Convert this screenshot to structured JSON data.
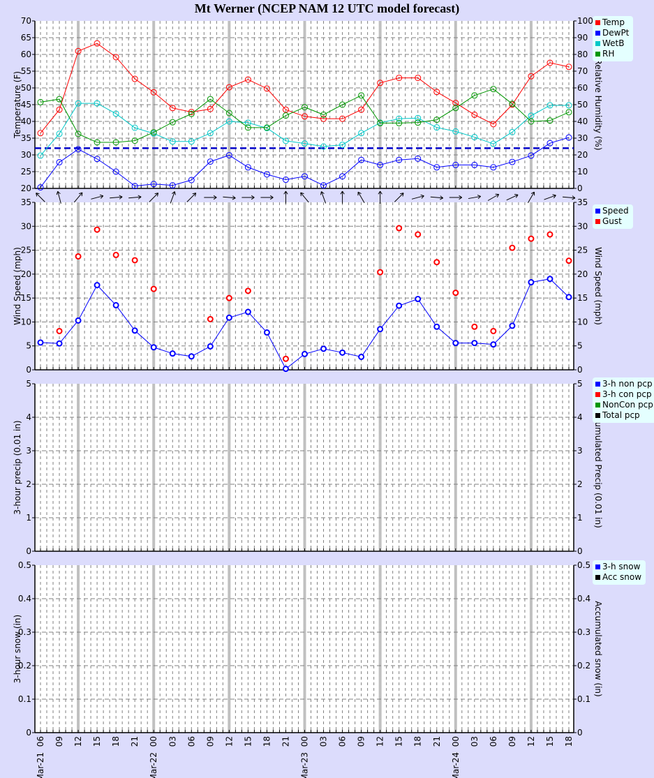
{
  "title": "Mt Werner (NCEP NAM 12 UTC model forecast)",
  "x_axis": {
    "tick_labels": [
      "06",
      "09",
      "12",
      "15",
      "18",
      "21",
      "00",
      "03",
      "06",
      "09",
      "12",
      "15",
      "18",
      "21",
      "00",
      "03",
      "06",
      "09",
      "12",
      "15",
      "18",
      "21",
      "00",
      "03",
      "06",
      "09",
      "12",
      "15",
      "18"
    ],
    "date_labels": [
      {
        "index": 0,
        "label": "Mar-21"
      },
      {
        "index": 6,
        "label": "Mar-22"
      },
      {
        "index": 14,
        "label": "Mar-23"
      },
      {
        "index": 22,
        "label": "Mar-24"
      }
    ]
  },
  "panels": {
    "temp": {
      "ylabel_left": "Temperature (F)",
      "ylabel_right": "Relative Humidity (%)",
      "left_ticks": [
        "70",
        "65",
        "60",
        "55",
        "50",
        "45",
        "40",
        "35",
        "30",
        "25",
        "20"
      ],
      "right_ticks": [
        "100",
        "90",
        "80",
        "70",
        "60",
        "50",
        "40",
        "30",
        "20",
        "10",
        "0"
      ],
      "legend": [
        {
          "label": "Temp",
          "color": "#ff0000"
        },
        {
          "label": "DewPt",
          "color": "#0000ff"
        },
        {
          "label": "WetB",
          "color": "#00c8c8"
        },
        {
          "label": "RH",
          "color": "#009600"
        }
      ]
    },
    "wind": {
      "ylabel_left": "Wind Speed (mph)",
      "ylabel_right": "Wind Speed (mph)",
      "left_ticks": [
        "35",
        "30",
        "25",
        "20",
        "15",
        "10",
        "5",
        "0"
      ],
      "right_ticks": [
        "35",
        "30",
        "25",
        "20",
        "15",
        "10",
        "5",
        "0"
      ],
      "legend": [
        {
          "label": "Speed",
          "color": "#0000ff"
        },
        {
          "label": "Gust",
          "color": "#ff0000"
        }
      ]
    },
    "precip": {
      "ylabel_left": "3-hour precip (0.01 in)",
      "ylabel_right": "Accumulated Precip (0.01 in)",
      "left_ticks": [
        "5",
        "4",
        "3",
        "2",
        "1",
        "0"
      ],
      "right_ticks": [
        "5",
        "4",
        "3",
        "2",
        "1",
        "0"
      ],
      "legend": [
        {
          "label": "3-h non pcp",
          "color": "#0000ff"
        },
        {
          "label": "3-h con pcp",
          "color": "#ff0000"
        },
        {
          "label": "NonCon pcp",
          "color": "#009600"
        },
        {
          "label": "Total pcp",
          "color": "#000000"
        }
      ]
    },
    "snow": {
      "ylabel_left": "3-hour snow (in)",
      "ylabel_right": "Accumulated snow (in)",
      "left_ticks": [
        "0.5",
        "0.4",
        "0.3",
        "0.2",
        "0.1",
        "0"
      ],
      "right_ticks": [
        "0.5",
        "0.4",
        "0.3",
        "0.2",
        "0.1",
        "0"
      ],
      "legend": [
        {
          "label": "3-h snow",
          "color": "#0000ff"
        },
        {
          "label": "Acc snow",
          "color": "#000000"
        }
      ]
    }
  },
  "chart_data": [
    {
      "type": "line",
      "title": "Mt Werner (NCEP NAM 12 UTC model forecast)",
      "panel": "temperature / humidity",
      "x": [
        "Mar-21 06",
        "09",
        "12",
        "15",
        "18",
        "21",
        "Mar-22 00",
        "03",
        "06",
        "09",
        "12",
        "15",
        "18",
        "21",
        "Mar-23 00",
        "03",
        "06",
        "09",
        "12",
        "15",
        "18",
        "21",
        "Mar-24 00",
        "03",
        "06",
        "09",
        "12",
        "15",
        "18"
      ],
      "xlabel": "",
      "ylabel": "Temperature (F)",
      "ylim": [
        20,
        70
      ],
      "y2label": "Relative Humidity (%)",
      "y2lim": [
        0,
        100
      ],
      "reference_line": {
        "value": 32,
        "style": "dashed",
        "color": "#0000c8"
      },
      "grid": true,
      "legend_position": "right-top",
      "series": [
        {
          "name": "Temp",
          "axis": "left",
          "color": "#ff0000",
          "values": [
            36.5,
            43.5,
            61,
            63.3,
            59.2,
            52.7,
            48.7,
            44,
            42.8,
            43.7,
            50.2,
            52.5,
            49.8,
            43.5,
            41.5,
            40.8,
            40.8,
            43.5,
            51.5,
            53,
            53,
            48.8,
            45.5,
            42,
            39.2,
            45,
            53.5,
            57.5,
            56.3
          ]
        },
        {
          "name": "DewPt",
          "axis": "left",
          "color": "#0000ff",
          "values": [
            20.3,
            27.8,
            31.7,
            28.8,
            25,
            20.7,
            21.3,
            20.9,
            22.5,
            28,
            29.9,
            26.3,
            24.2,
            22.6,
            23.6,
            20.9,
            23.6,
            28.5,
            27,
            28.5,
            28.9,
            26.3,
            27,
            27,
            26.3,
            27.9,
            29.8,
            33.5,
            35.2
          ]
        },
        {
          "name": "WetB",
          "axis": "left",
          "color": "#00c8c8",
          "values": [
            29.8,
            36.3,
            45.4,
            45.4,
            42.3,
            38.1,
            36.4,
            34,
            34,
            36.5,
            40,
            39.6,
            38,
            34.2,
            33.4,
            32.5,
            33,
            36.5,
            39.6,
            40.8,
            41,
            38.2,
            37,
            35.3,
            33.3,
            36.8,
            41.7,
            44.8,
            44.8
          ]
        },
        {
          "name": "RH",
          "axis": "right",
          "color": "#009600",
          "values": [
            51.5,
            53.3,
            32.5,
            27.5,
            27.5,
            28.5,
            33.5,
            39.5,
            44.5,
            53.3,
            45,
            36.3,
            36.3,
            43.5,
            48.5,
            44,
            50,
            55.5,
            39,
            39,
            39.3,
            41,
            48,
            55.5,
            59.3,
            50.5,
            40,
            40.5,
            45.5
          ]
        }
      ]
    },
    {
      "type": "line",
      "panel": "wind",
      "x": [
        "Mar-21 06",
        "09",
        "12",
        "15",
        "18",
        "21",
        "Mar-22 00",
        "03",
        "06",
        "09",
        "12",
        "15",
        "18",
        "21",
        "Mar-23 00",
        "03",
        "06",
        "09",
        "12",
        "15",
        "18",
        "21",
        "Mar-24 00",
        "03",
        "06",
        "09",
        "12",
        "15",
        "18"
      ],
      "ylabel": "Wind Speed (mph)",
      "ylim": [
        0,
        35
      ],
      "grid": true,
      "legend_position": "right-top",
      "series": [
        {
          "name": "Speed",
          "color": "#0000ff",
          "style": "line+markers",
          "values": [
            5.7,
            5.5,
            10.3,
            17.7,
            13.5,
            8.2,
            4.7,
            3.4,
            2.8,
            4.9,
            10.9,
            12.1,
            7.8,
            0.2,
            3.3,
            4.4,
            3.6,
            2.7,
            8.5,
            13.4,
            14.8,
            9,
            5.6,
            5.6,
            5.3,
            9.2,
            18.3,
            19,
            15.2
          ]
        },
        {
          "name": "Gust",
          "color": "#ff0000",
          "style": "markers",
          "values": [
            null,
            8.1,
            23.7,
            29.3,
            24,
            22.9,
            16.9,
            null,
            null,
            10.6,
            15,
            16.5,
            null,
            2.3,
            null,
            null,
            null,
            null,
            20.4,
            29.6,
            28.3,
            22.5,
            16.1,
            9,
            8.1,
            25.5,
            27.4,
            28.3,
            22.8
          ]
        }
      ],
      "wind_direction_arrows_deg_toward": [
        315,
        345,
        40,
        75,
        85,
        85,
        45,
        20,
        45,
        90,
        95,
        90,
        90,
        0,
        320,
        340,
        0,
        330,
        0,
        45,
        75,
        95,
        90,
        80,
        60,
        65,
        30,
        70,
        95
      ]
    },
    {
      "type": "bar",
      "panel": "precip",
      "ylabel": "3-hour precip (0.01 in)",
      "y2label": "Accumulated Precip (0.01 in)",
      "ylim": [
        0,
        5
      ],
      "grid": true,
      "series": [
        {
          "name": "3-h non pcp",
          "values": []
        },
        {
          "name": "3-h con pcp",
          "values": []
        },
        {
          "name": "NonCon pcp",
          "values": []
        },
        {
          "name": "Total pcp",
          "values": []
        }
      ]
    },
    {
      "type": "bar",
      "panel": "snow",
      "ylabel": "3-hour snow (in)",
      "y2label": "Accumulated snow (in)",
      "ylim": [
        0,
        0.5
      ],
      "grid": true,
      "series": [
        {
          "name": "3-h snow",
          "values": []
        },
        {
          "name": "Acc snow",
          "values": []
        }
      ]
    }
  ]
}
